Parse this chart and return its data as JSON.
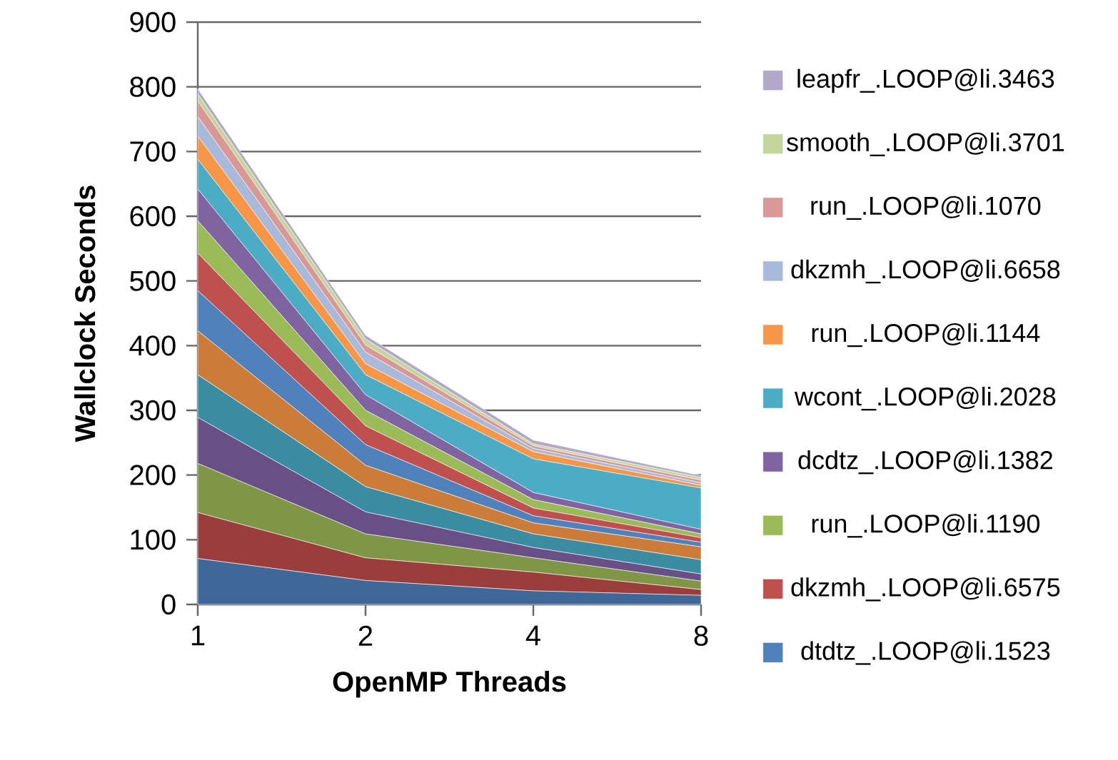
{
  "chart_data": {
    "type": "area",
    "stacked": true,
    "xlabel": "OpenMP Threads",
    "ylabel": "Wallclock Seconds",
    "categories": [
      "1",
      "2",
      "4",
      "8"
    ],
    "ylim": [
      0,
      900
    ],
    "yticks": [
      0,
      100,
      200,
      300,
      400,
      500,
      600,
      700,
      800,
      900
    ],
    "grid": "y",
    "legend": "right",
    "series": [
      {
        "color": "#3f6797",
        "values": [
          71,
          37,
          21,
          14
        ]
      },
      {
        "color": "#9b3d3b",
        "values": [
          71,
          35,
          29,
          9
        ]
      },
      {
        "color": "#7f9647",
        "values": [
          76,
          37,
          22,
          13
        ]
      },
      {
        "color": "#684f86",
        "values": [
          71,
          34,
          16,
          11
        ]
      },
      {
        "color": "#3a8ca3",
        "values": [
          66,
          39,
          21,
          22
        ]
      },
      {
        "color": "#cc7c39",
        "values": [
          68,
          33,
          17,
          20
        ]
      },
      {
        "name": "dtdtz_.LOOP@li.1523",
        "color": "#4f81bd",
        "values": [
          62,
          32,
          11,
          7
        ]
      },
      {
        "name": "dkzmh_.LOOP@li.6575",
        "color": "#c0504d",
        "values": [
          58,
          29,
          12,
          7
        ]
      },
      {
        "name": "run_.LOOP@li.1190",
        "color": "#9bbb59",
        "values": [
          50,
          24,
          13,
          6
        ]
      },
      {
        "name": "dcdtz_.LOOP@li.1382",
        "color": "#8064a2",
        "values": [
          49,
          24,
          11,
          7
        ]
      },
      {
        "name": "wcont_.LOOP@li.2028",
        "color": "#4bacc6",
        "values": [
          46,
          31,
          52,
          64
        ]
      },
      {
        "name": "run_.LOOP@li.1144",
        "color": "#f79646",
        "values": [
          36,
          17,
          11,
          4
        ]
      },
      {
        "name": "dkzmh_.LOOP@li.6658",
        "color": "#a9b9d9",
        "values": [
          30,
          18,
          5,
          4
        ]
      },
      {
        "name": "run_.LOOP@li.1070",
        "color": "#d99795",
        "values": [
          24,
          11,
          4,
          4
        ]
      },
      {
        "name": "smooth_.LOOP@li.3701",
        "color": "#c3d69b",
        "values": [
          11,
          9,
          3,
          4
        ]
      },
      {
        "name": "leapfr_.LOOP@li.3463",
        "color": "#b3a8c9",
        "values": [
          8,
          6,
          6,
          3
        ]
      }
    ]
  }
}
